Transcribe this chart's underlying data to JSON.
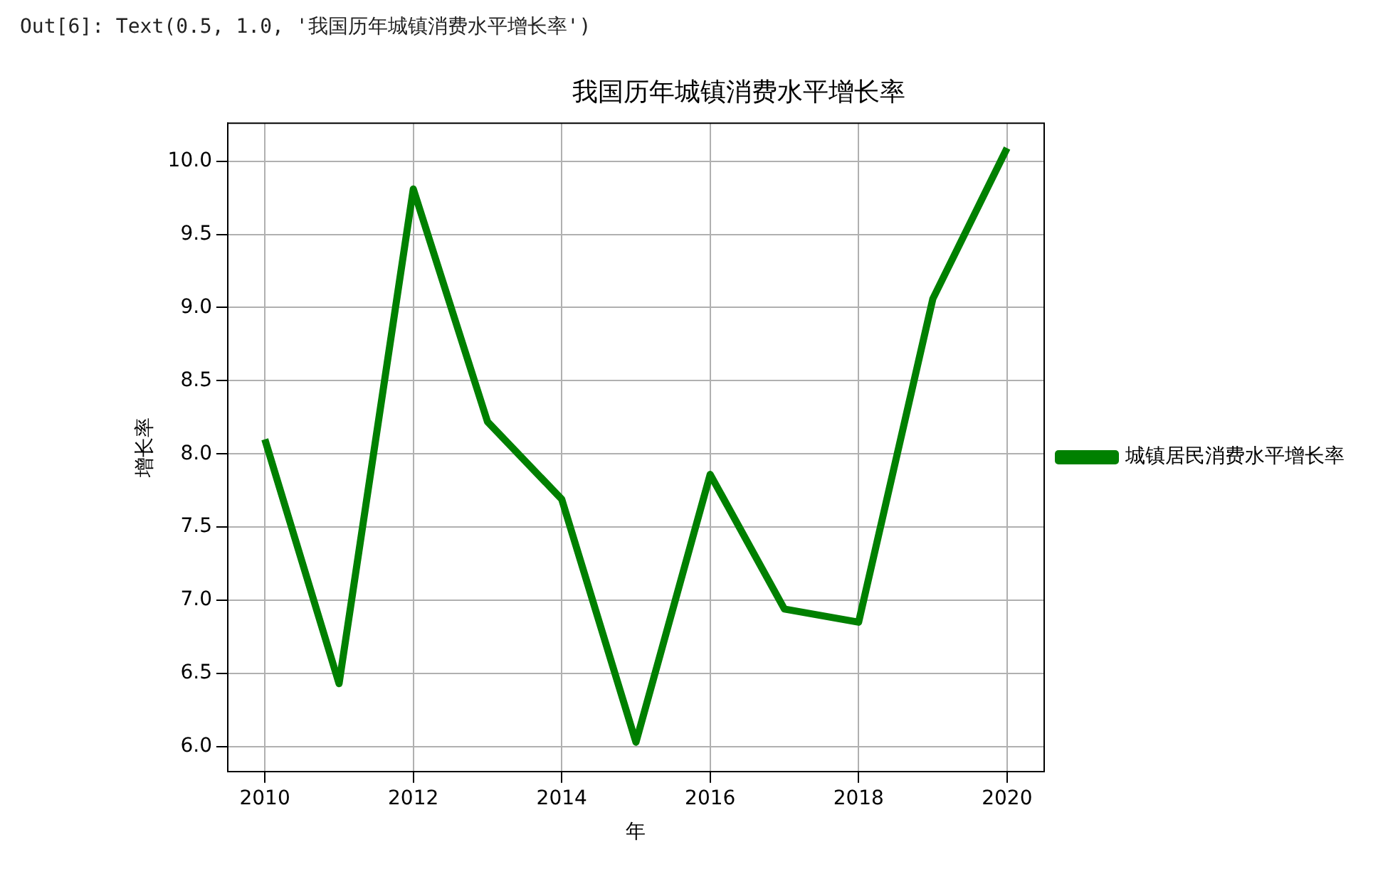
{
  "chart_data": {
    "type": "line",
    "title": "我国历年城镇消费水平增长率",
    "xlabel": "年",
    "ylabel": "增长率",
    "annotations": [
      "Out[6]: Text(0.5, 1.0, '我国历年城镇消费水平增长率')"
    ],
    "x": [
      2010,
      2011,
      2012,
      2013,
      2014,
      2015,
      2016,
      2017,
      2018,
      2019,
      2020
    ],
    "series": [
      {
        "name": "城镇居民消费水平增长率",
        "color": "#008000",
        "values": [
          8.1,
          6.43,
          9.81,
          8.22,
          7.69,
          6.03,
          7.86,
          6.94,
          6.85,
          9.06,
          10.09
        ]
      }
    ],
    "xlim": [
      2009.5,
      2020.5
    ],
    "xticks": [
      2010,
      2012,
      2014,
      2016,
      2018,
      2020
    ],
    "ylim": [
      5.83,
      10.26
    ],
    "yticks": [
      {
        "value": 6,
        "label": "6.0"
      },
      {
        "value": 6.5,
        "label": "6.5"
      },
      {
        "value": 7,
        "label": "7.0"
      },
      {
        "value": 7.5,
        "label": "7.5"
      },
      {
        "value": 8,
        "label": "8.0"
      },
      {
        "value": 8.5,
        "label": "8.5"
      },
      {
        "value": 9,
        "label": "9.0"
      },
      {
        "value": 9.5,
        "label": "9.5"
      },
      {
        "value": 10,
        "label": "10.0"
      }
    ],
    "grid": true,
    "legend": "right",
    "marker": "none",
    "line_style": "solid"
  }
}
